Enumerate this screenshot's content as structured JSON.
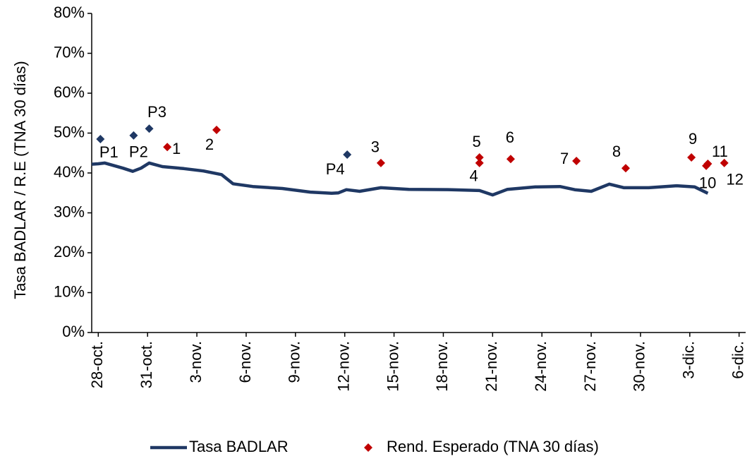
{
  "chart_data": {
    "type": "line",
    "ylabel": "Tasa BADLAR / R.E (TNA 30 días)",
    "xlim": [
      -0.4,
      39.4
    ],
    "xticks": [
      {
        "value": 0,
        "label": "28-oct."
      },
      {
        "value": 3,
        "label": "31-oct."
      },
      {
        "value": 6,
        "label": "3-nov."
      },
      {
        "value": 9,
        "label": "6-nov."
      },
      {
        "value": 12,
        "label": "9-nov."
      },
      {
        "value": 15,
        "label": "12-nov."
      },
      {
        "value": 18,
        "label": "15-nov."
      },
      {
        "value": 21,
        "label": "18-nov."
      },
      {
        "value": 24,
        "label": "21-nov."
      },
      {
        "value": 27,
        "label": "24-nov."
      },
      {
        "value": 30,
        "label": "27-nov."
      },
      {
        "value": 33,
        "label": "30-nov."
      },
      {
        "value": 36,
        "label": "3-dic."
      },
      {
        "value": 39,
        "label": "6-dic."
      }
    ],
    "ylim": [
      0,
      80
    ],
    "yticks": [
      {
        "value": 0,
        "label": "0%"
      },
      {
        "value": 10,
        "label": "10%"
      },
      {
        "value": 20,
        "label": "20%"
      },
      {
        "value": 30,
        "label": "30%"
      },
      {
        "value": 40,
        "label": "40%"
      },
      {
        "value": 50,
        "label": "50%"
      },
      {
        "value": 60,
        "label": "60%"
      },
      {
        "value": 70,
        "label": "70%"
      },
      {
        "value": 80,
        "label": "80%"
      }
    ],
    "series": [
      {
        "name": "Tasa BADLAR",
        "type": "line",
        "color": "#1f3864",
        "x": [
          -0.4,
          0,
          0.4,
          1.5,
          2.1,
          2.6,
          3.1,
          3.9,
          5.2,
          6.4,
          7.5,
          8.2,
          9.4,
          11.2,
          12.9,
          14.2,
          14.6,
          15.1,
          15.9,
          17.2,
          18.9,
          21.5,
          23.2,
          24,
          24.9,
          26.6,
          28.1,
          29,
          30,
          31.1,
          32,
          33.5,
          35.2,
          36.3,
          37.1
        ],
        "values": [
          42.2,
          42.3,
          42.5,
          41.2,
          40.4,
          41.2,
          42.5,
          41.6,
          41.1,
          40.5,
          39.6,
          37.3,
          36.6,
          36.1,
          35.2,
          34.9,
          35.0,
          35.8,
          35.4,
          36.3,
          35.9,
          35.8,
          35.6,
          34.5,
          35.9,
          36.5,
          36.6,
          35.8,
          35.4,
          37.2,
          36.3,
          36.3,
          36.8,
          36.5,
          34.9
        ]
      },
      {
        "name": "Rend. Esperado (TNA 30 días)",
        "type": "scatter",
        "color": "#c00000",
        "x": [
          4.2,
          7.2,
          17.2,
          23.2,
          23.2,
          25.1,
          29.1,
          32.1,
          36.1,
          37.0,
          37.1,
          38.1
        ],
        "values": [
          46.5,
          50.8,
          42.5,
          42.5,
          43.9,
          43.5,
          43.0,
          41.2,
          43.9,
          41.8,
          42.3,
          42.5
        ],
        "labels": [
          "1",
          "2",
          "3",
          "4",
          "5",
          "6",
          "7",
          "8",
          "9",
          "10",
          "11",
          "12"
        ]
      },
      {
        "type": "scatter",
        "color": "#1f3864",
        "x": [
          0.13,
          2.15,
          3.1,
          15.15
        ],
        "values": [
          48.5,
          49.4,
          51.1,
          44.6
        ],
        "labels": [
          "P1",
          "P2",
          "P3",
          "P4"
        ]
      }
    ]
  }
}
